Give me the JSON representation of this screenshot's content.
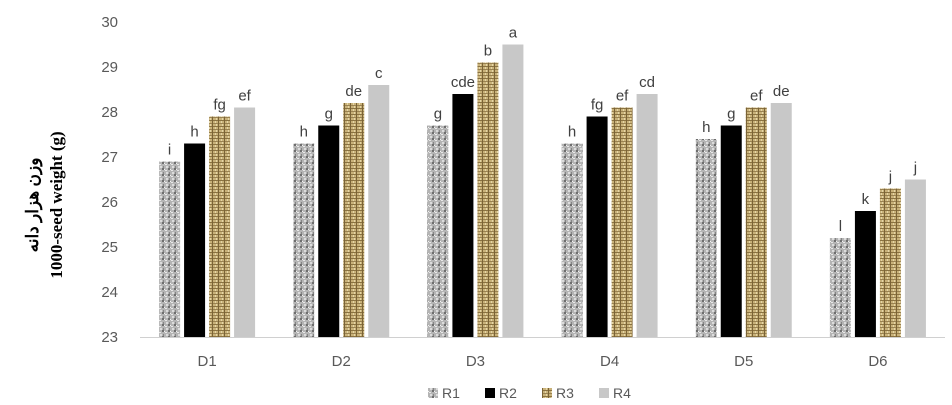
{
  "chart_data": {
    "type": "bar",
    "title": "",
    "ylabel_fa": "وزن هزار دانه",
    "ylabel": "1000-seed weight (g)",
    "xlabel": "",
    "ylim": [
      23,
      30
    ],
    "yticks": [
      "23",
      "24",
      "25",
      "26",
      "27",
      "28",
      "29",
      "30"
    ],
    "categories": [
      "D1",
      "D2",
      "D3",
      "D4",
      "D5",
      "D6"
    ],
    "series": [
      {
        "name": "R1",
        "color": "#9a9a9a",
        "pattern": "speckle-gray",
        "values": [
          26.9,
          27.3,
          27.7,
          27.3,
          27.4,
          25.2
        ],
        "letters": [
          "i",
          "h",
          "g",
          "h",
          "h",
          "l"
        ]
      },
      {
        "name": "R2",
        "color": "#000000",
        "pattern": "solid-black",
        "values": [
          27.3,
          27.7,
          28.4,
          27.9,
          27.7,
          25.8
        ],
        "letters": [
          "h",
          "g",
          "cde",
          "fg",
          "g",
          "k"
        ]
      },
      {
        "name": "R3",
        "color": "#b8a06a",
        "pattern": "woven-tan",
        "values": [
          27.9,
          28.2,
          29.1,
          28.1,
          28.1,
          26.3
        ],
        "letters": [
          "fg",
          "de",
          "b",
          "ef",
          "ef",
          "j"
        ]
      },
      {
        "name": "R4",
        "color": "#c8c8c8",
        "pattern": "solid-lightgray",
        "values": [
          28.1,
          28.6,
          29.5,
          28.4,
          28.2,
          26.5
        ],
        "letters": [
          "ef",
          "c",
          "a",
          "cd",
          "de",
          "j"
        ]
      }
    ],
    "grid": false,
    "legend_position": "bottom"
  }
}
